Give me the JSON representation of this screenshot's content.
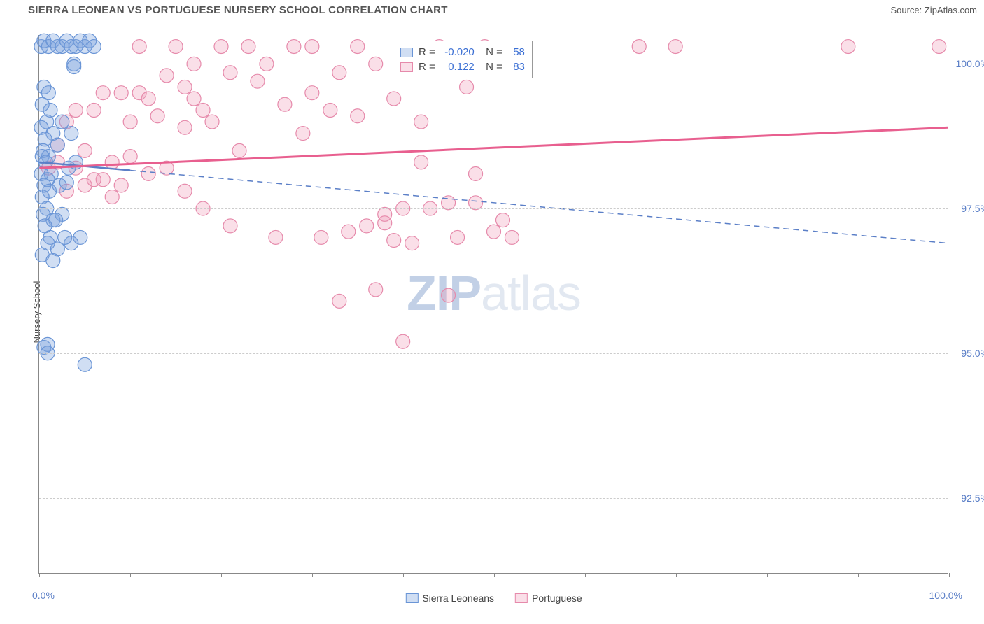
{
  "title": "SIERRA LEONEAN VS PORTUGUESE NURSERY SCHOOL CORRELATION CHART",
  "source": "Source: ZipAtlas.com",
  "watermark": {
    "zip": "ZIP",
    "atlas": "atlas"
  },
  "ylabel": "Nursery School",
  "xaxis": {
    "min_label": "0.0%",
    "max_label": "100.0%",
    "min": 0,
    "max": 100,
    "tick_positions": [
      0,
      10,
      20,
      30,
      40,
      50,
      60,
      70,
      80,
      90,
      100
    ]
  },
  "yaxis": {
    "min": 91.2,
    "max": 100.5,
    "ticks": [
      {
        "value": 92.5,
        "label": "92.5%"
      },
      {
        "value": 95.0,
        "label": "95.0%"
      },
      {
        "value": 97.5,
        "label": "97.5%"
      },
      {
        "value": 100.0,
        "label": "100.0%"
      }
    ]
  },
  "colors": {
    "blue_fill": "rgba(120,160,220,0.35)",
    "blue_stroke": "#6a95d6",
    "pink_fill": "rgba(240,150,180,0.30)",
    "pink_stroke": "#e68aab",
    "blue_line": "#5b7fc7",
    "pink_line": "#e85f8f",
    "axis_text": "#5b7fc7",
    "grid": "#cccccc",
    "label_text": "#444444"
  },
  "marker_radius": 10,
  "series": {
    "sierra_leoneans": {
      "label": "Sierra Leoneans",
      "R": "-0.020",
      "N": "58",
      "trend": {
        "y_at_x0": 98.3,
        "y_at_x100": 96.9,
        "solid_until_x": 10,
        "dashed": true
      },
      "points": [
        {
          "x": 0.2,
          "y": 100.3
        },
        {
          "x": 0.5,
          "y": 100.4
        },
        {
          "x": 1.0,
          "y": 100.3
        },
        {
          "x": 1.5,
          "y": 100.4
        },
        {
          "x": 2.0,
          "y": 100.3
        },
        {
          "x": 2.5,
          "y": 100.3
        },
        {
          "x": 3.0,
          "y": 100.4
        },
        {
          "x": 3.5,
          "y": 100.3
        },
        {
          "x": 4.0,
          "y": 100.3
        },
        {
          "x": 4.5,
          "y": 100.4
        },
        {
          "x": 5.0,
          "y": 100.3
        },
        {
          "x": 5.5,
          "y": 100.4
        },
        {
          "x": 3.8,
          "y": 100.0
        },
        {
          "x": 3.8,
          "y": 99.95
        },
        {
          "x": 6.0,
          "y": 100.3
        },
        {
          "x": 0.5,
          "y": 99.6
        },
        {
          "x": 1.0,
          "y": 99.5
        },
        {
          "x": 0.3,
          "y": 99.3
        },
        {
          "x": 1.2,
          "y": 99.2
        },
        {
          "x": 0.8,
          "y": 99.0
        },
        {
          "x": 0.2,
          "y": 98.9
        },
        {
          "x": 1.5,
          "y": 98.8
        },
        {
          "x": 0.6,
          "y": 98.7
        },
        {
          "x": 2.0,
          "y": 98.6
        },
        {
          "x": 0.4,
          "y": 98.5
        },
        {
          "x": 1.0,
          "y": 98.4
        },
        {
          "x": 0.3,
          "y": 98.4
        },
        {
          "x": 0.7,
          "y": 98.3
        },
        {
          "x": 1.3,
          "y": 98.1
        },
        {
          "x": 0.2,
          "y": 98.1
        },
        {
          "x": 0.9,
          "y": 98.0
        },
        {
          "x": 0.5,
          "y": 97.9
        },
        {
          "x": 1.1,
          "y": 97.8
        },
        {
          "x": 0.3,
          "y": 97.7
        },
        {
          "x": 2.2,
          "y": 97.9
        },
        {
          "x": 3.0,
          "y": 97.95
        },
        {
          "x": 0.8,
          "y": 97.5
        },
        {
          "x": 1.5,
          "y": 97.3
        },
        {
          "x": 2.5,
          "y": 97.4
        },
        {
          "x": 0.4,
          "y": 97.4
        },
        {
          "x": 1.8,
          "y": 97.3
        },
        {
          "x": 0.6,
          "y": 97.2
        },
        {
          "x": 1.2,
          "y": 97.0
        },
        {
          "x": 0.9,
          "y": 96.9
        },
        {
          "x": 2.0,
          "y": 96.8
        },
        {
          "x": 4.5,
          "y": 97.0
        },
        {
          "x": 0.3,
          "y": 96.7
        },
        {
          "x": 3.5,
          "y": 96.9
        },
        {
          "x": 1.5,
          "y": 96.6
        },
        {
          "x": 2.8,
          "y": 97.0
        },
        {
          "x": 0.5,
          "y": 95.1
        },
        {
          "x": 0.9,
          "y": 95.15
        },
        {
          "x": 0.9,
          "y": 95.0
        },
        {
          "x": 5.0,
          "y": 94.8
        },
        {
          "x": 3.2,
          "y": 98.2
        },
        {
          "x": 4.0,
          "y": 98.3
        },
        {
          "x": 2.5,
          "y": 99.0
        },
        {
          "x": 3.5,
          "y": 98.8
        }
      ]
    },
    "portuguese": {
      "label": "Portuguese",
      "R": "0.122",
      "N": "83",
      "trend": {
        "y_at_x0": 98.2,
        "y_at_x100": 98.9,
        "solid_until_x": 100,
        "dashed": false
      },
      "points": [
        {
          "x": 1,
          "y": 98.2
        },
        {
          "x": 2,
          "y": 98.3
        },
        {
          "x": 3,
          "y": 99.0
        },
        {
          "x": 4,
          "y": 98.2
        },
        {
          "x": 5,
          "y": 97.9
        },
        {
          "x": 6,
          "y": 99.2
        },
        {
          "x": 7,
          "y": 98.0
        },
        {
          "x": 8,
          "y": 97.7
        },
        {
          "x": 9,
          "y": 99.5
        },
        {
          "x": 10,
          "y": 98.4
        },
        {
          "x": 11,
          "y": 100.3
        },
        {
          "x": 11,
          "y": 99.5
        },
        {
          "x": 12,
          "y": 98.1
        },
        {
          "x": 13,
          "y": 99.1
        },
        {
          "x": 14,
          "y": 99.8
        },
        {
          "x": 15,
          "y": 100.3
        },
        {
          "x": 16,
          "y": 98.9
        },
        {
          "x": 16,
          "y": 99.6
        },
        {
          "x": 17,
          "y": 100.0
        },
        {
          "x": 17,
          "y": 99.4
        },
        {
          "x": 18,
          "y": 97.5
        },
        {
          "x": 19,
          "y": 99.0
        },
        {
          "x": 20,
          "y": 100.3
        },
        {
          "x": 21,
          "y": 97.2
        },
        {
          "x": 21,
          "y": 99.85
        },
        {
          "x": 22,
          "y": 98.5
        },
        {
          "x": 23,
          "y": 100.3
        },
        {
          "x": 24,
          "y": 99.7
        },
        {
          "x": 25,
          "y": 100.0
        },
        {
          "x": 26,
          "y": 97.0
        },
        {
          "x": 27,
          "y": 99.3
        },
        {
          "x": 28,
          "y": 100.3
        },
        {
          "x": 29,
          "y": 98.8
        },
        {
          "x": 30,
          "y": 99.5
        },
        {
          "x": 30,
          "y": 100.3
        },
        {
          "x": 31,
          "y": 97.0
        },
        {
          "x": 32,
          "y": 99.2
        },
        {
          "x": 33,
          "y": 95.9
        },
        {
          "x": 34,
          "y": 97.1
        },
        {
          "x": 33,
          "y": 99.85
        },
        {
          "x": 35,
          "y": 100.3
        },
        {
          "x": 35,
          "y": 99.1
        },
        {
          "x": 36,
          "y": 97.2
        },
        {
          "x": 37,
          "y": 100.0
        },
        {
          "x": 37,
          "y": 96.1
        },
        {
          "x": 38,
          "y": 97.25
        },
        {
          "x": 38,
          "y": 97.4
        },
        {
          "x": 39,
          "y": 99.4
        },
        {
          "x": 39,
          "y": 96.95
        },
        {
          "x": 40,
          "y": 95.2
        },
        {
          "x": 40,
          "y": 97.5
        },
        {
          "x": 41,
          "y": 96.9
        },
        {
          "x": 42,
          "y": 99.0
        },
        {
          "x": 42,
          "y": 98.3
        },
        {
          "x": 43,
          "y": 97.5
        },
        {
          "x": 44,
          "y": 100.3
        },
        {
          "x": 45,
          "y": 96.0
        },
        {
          "x": 45,
          "y": 97.6
        },
        {
          "x": 46,
          "y": 97.0
        },
        {
          "x": 47,
          "y": 99.6
        },
        {
          "x": 48,
          "y": 97.6
        },
        {
          "x": 48,
          "y": 98.1
        },
        {
          "x": 49,
          "y": 100.3
        },
        {
          "x": 50,
          "y": 97.1
        },
        {
          "x": 51,
          "y": 97.3
        },
        {
          "x": 52,
          "y": 97.0
        },
        {
          "x": 66,
          "y": 100.3
        },
        {
          "x": 70,
          "y": 100.3
        },
        {
          "x": 89,
          "y": 100.3
        },
        {
          "x": 99,
          "y": 100.3
        },
        {
          "x": 2,
          "y": 98.6
        },
        {
          "x": 3,
          "y": 97.8
        },
        {
          "x": 4,
          "y": 99.2
        },
        {
          "x": 5,
          "y": 98.5
        },
        {
          "x": 6,
          "y": 98.0
        },
        {
          "x": 7,
          "y": 99.5
        },
        {
          "x": 8,
          "y": 98.3
        },
        {
          "x": 9,
          "y": 97.9
        },
        {
          "x": 10,
          "y": 99.0
        },
        {
          "x": 12,
          "y": 99.4
        },
        {
          "x": 14,
          "y": 98.2
        },
        {
          "x": 16,
          "y": 97.8
        },
        {
          "x": 18,
          "y": 99.2
        }
      ]
    }
  },
  "bottom_legend": [
    {
      "key": "sierra_leoneans",
      "label": "Sierra Leoneans"
    },
    {
      "key": "portuguese",
      "label": "Portuguese"
    }
  ]
}
